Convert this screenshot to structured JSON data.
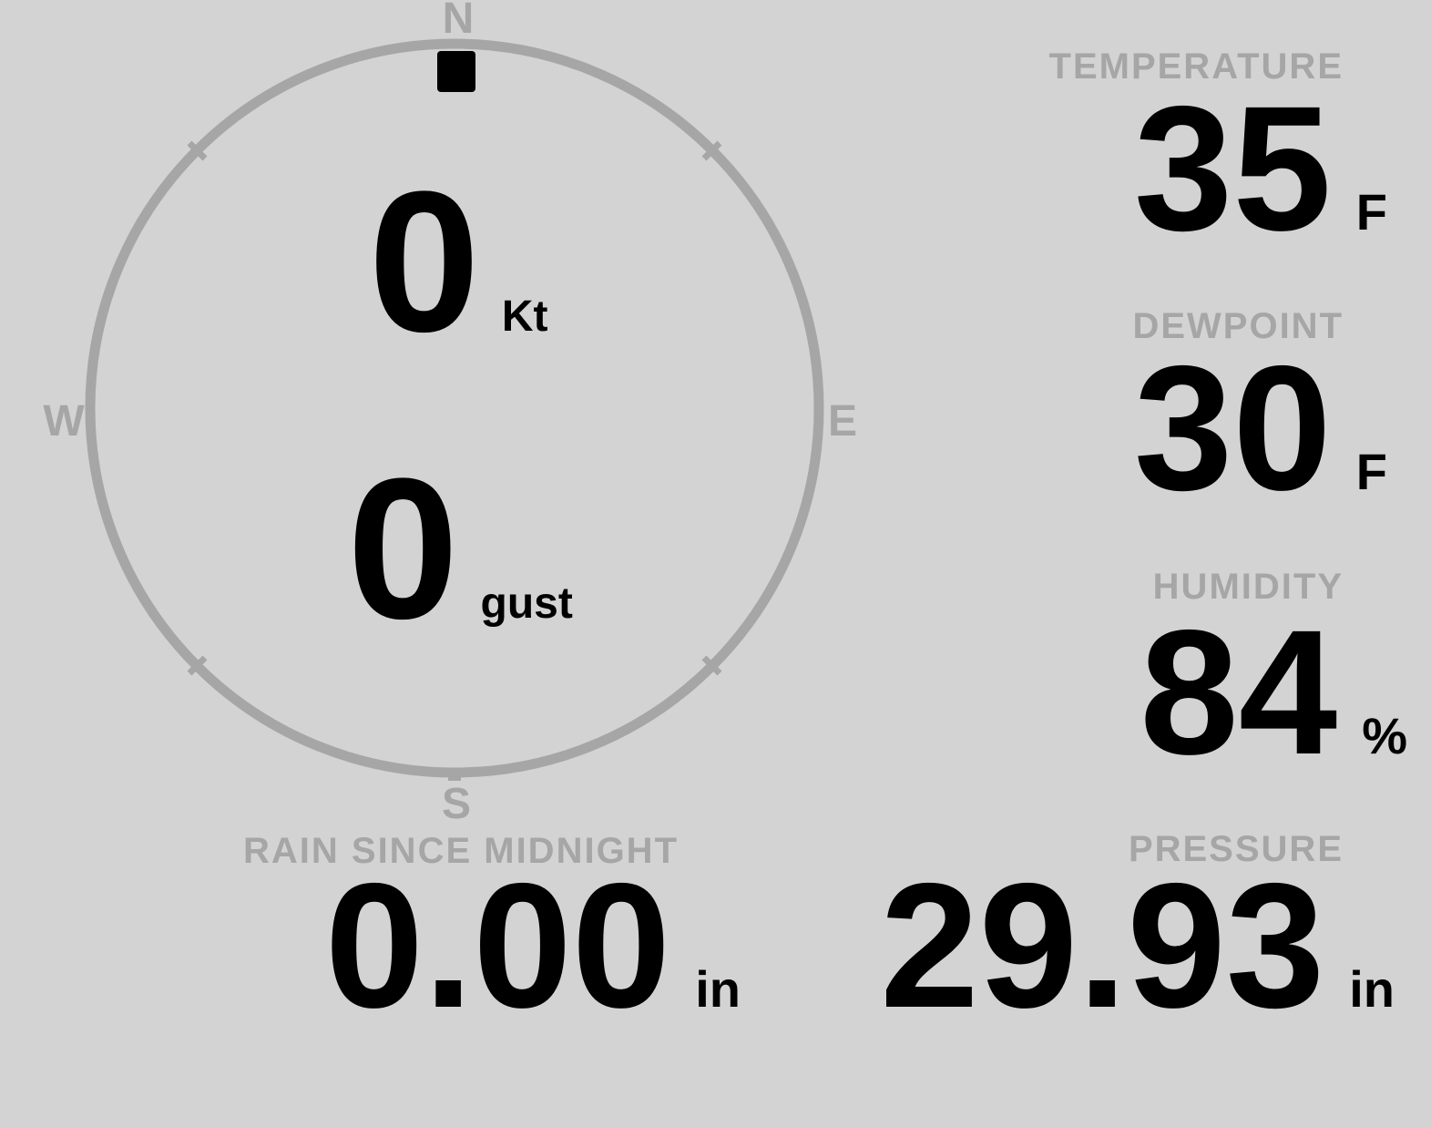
{
  "colors": {
    "background": "#d3d3d3",
    "muted": "#a6a6a6",
    "ink": "#000000"
  },
  "wind": {
    "compass_points": {
      "north": "N",
      "east": "E",
      "south": "S",
      "west": "W"
    },
    "direction_deg": 0,
    "speed_value": "0",
    "speed_unit": "Kt",
    "gust_value": "0",
    "gust_unit": "gust"
  },
  "metrics": {
    "temperature": {
      "label": "TEMPERATURE",
      "value": "35",
      "unit": "F"
    },
    "dewpoint": {
      "label": "DEWPOINT",
      "value": "30",
      "unit": "F"
    },
    "humidity": {
      "label": "HUMIDITY",
      "value": "84",
      "unit": "%"
    },
    "pressure": {
      "label": "PRESSURE",
      "value": "29.93",
      "unit": "in"
    },
    "rain_since_midnight": {
      "label": "RAIN SINCE MIDNIGHT",
      "value": "0.00",
      "unit": "in"
    }
  }
}
